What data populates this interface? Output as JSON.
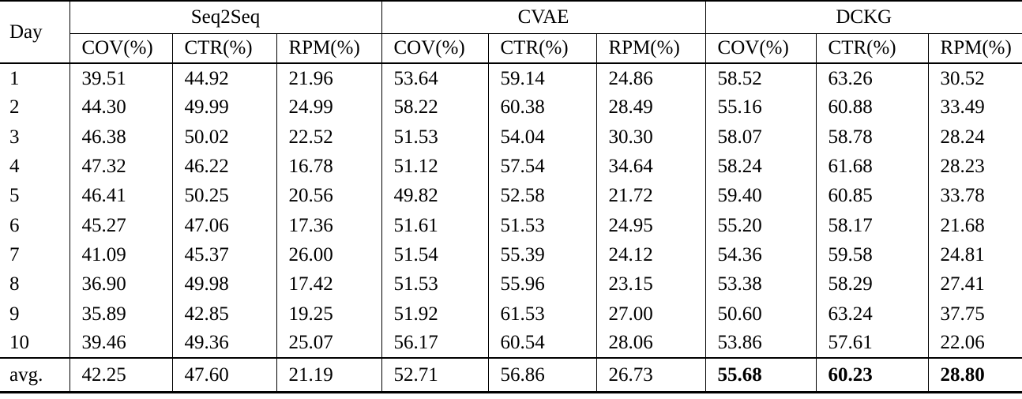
{
  "table": {
    "day_header": "Day",
    "groups": [
      {
        "name": "Seq2Seq",
        "columns": [
          "COV(%)",
          "CTR(%)",
          "RPM(%)"
        ]
      },
      {
        "name": "CVAE",
        "columns": [
          "COV(%)",
          "CTR(%)",
          "RPM(%)"
        ]
      },
      {
        "name": "DCKG",
        "columns": [
          "COV(%)",
          "CTR(%)",
          "RPM(%)"
        ]
      }
    ],
    "rows": [
      {
        "day": "1",
        "values": [
          "39.51",
          "44.92",
          "21.96",
          "53.64",
          "59.14",
          "24.86",
          "58.52",
          "63.26",
          "30.52"
        ]
      },
      {
        "day": "2",
        "values": [
          "44.30",
          "49.99",
          "24.99",
          "58.22",
          "60.38",
          "28.49",
          "55.16",
          "60.88",
          "33.49"
        ]
      },
      {
        "day": "3",
        "values": [
          "46.38",
          "50.02",
          "22.52",
          "51.53",
          "54.04",
          "30.30",
          "58.07",
          "58.78",
          "28.24"
        ]
      },
      {
        "day": "4",
        "values": [
          "47.32",
          "46.22",
          "16.78",
          "51.12",
          "57.54",
          "34.64",
          "58.24",
          "61.68",
          "28.23"
        ]
      },
      {
        "day": "5",
        "values": [
          "46.41",
          "50.25",
          "20.56",
          "49.82",
          "52.58",
          "21.72",
          "59.40",
          "60.85",
          "33.78"
        ]
      },
      {
        "day": "6",
        "values": [
          "45.27",
          "47.06",
          "17.36",
          "51.61",
          "51.53",
          "24.95",
          "55.20",
          "58.17",
          "21.68"
        ]
      },
      {
        "day": "7",
        "values": [
          "41.09",
          "45.37",
          "26.00",
          "51.54",
          "55.39",
          "24.12",
          "54.36",
          "59.58",
          "24.81"
        ]
      },
      {
        "day": "8",
        "values": [
          "36.90",
          "49.98",
          "17.42",
          "51.53",
          "55.96",
          "23.15",
          "53.38",
          "58.29",
          "27.41"
        ]
      },
      {
        "day": "9",
        "values": [
          "35.89",
          "42.85",
          "19.25",
          "51.92",
          "61.53",
          "27.00",
          "50.60",
          "63.24",
          "37.75"
        ]
      },
      {
        "day": "10",
        "values": [
          "39.46",
          "49.36",
          "25.07",
          "56.17",
          "60.54",
          "28.06",
          "53.86",
          "57.61",
          "22.06"
        ]
      }
    ],
    "avg_row": {
      "day": "avg.",
      "values": [
        "42.25",
        "47.60",
        "21.19",
        "52.71",
        "56.86",
        "26.73",
        "55.68",
        "60.23",
        "28.80"
      ]
    }
  }
}
